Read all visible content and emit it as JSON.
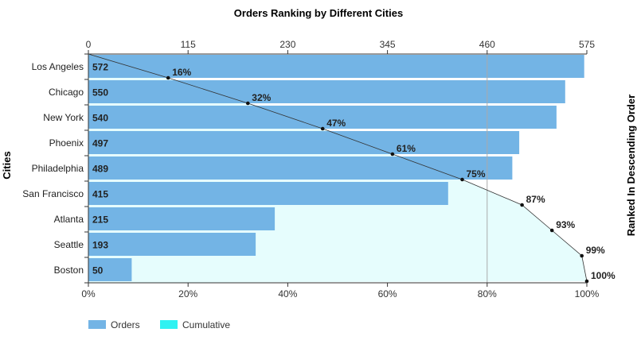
{
  "chart_data": {
    "type": "bar",
    "orientation": "horizontal",
    "title": "Orders Ranking by Different Cities",
    "ylabel": "Cities",
    "y2label": "Ranked In Descending Order",
    "categories": [
      "Los Angeles",
      "Chicago",
      "New York",
      "Phoenix",
      "Philadelphia",
      "San Francisco",
      "Atlanta",
      "Seattle",
      "Boston"
    ],
    "series": [
      {
        "name": "Orders",
        "values": [
          572,
          550,
          540,
          497,
          489,
          415,
          215,
          193,
          50
        ],
        "color": "#73b4e5"
      },
      {
        "name": "Cumulative",
        "values": [
          16,
          32,
          47,
          61,
          75,
          87,
          93,
          99,
          100
        ],
        "color": "#2ff2f2",
        "area_fill": "#e6fdfd"
      }
    ],
    "x_top_ticks": [
      "0",
      "115",
      "230",
      "345",
      "460",
      "575"
    ],
    "x_top_range": [
      0,
      575
    ],
    "x_bottom_ticks": [
      "0%",
      "20%",
      "40%",
      "60%",
      "80%",
      "100%"
    ],
    "x_bottom_range": [
      0,
      100
    ],
    "grid": false,
    "legend": "bottom-left"
  }
}
